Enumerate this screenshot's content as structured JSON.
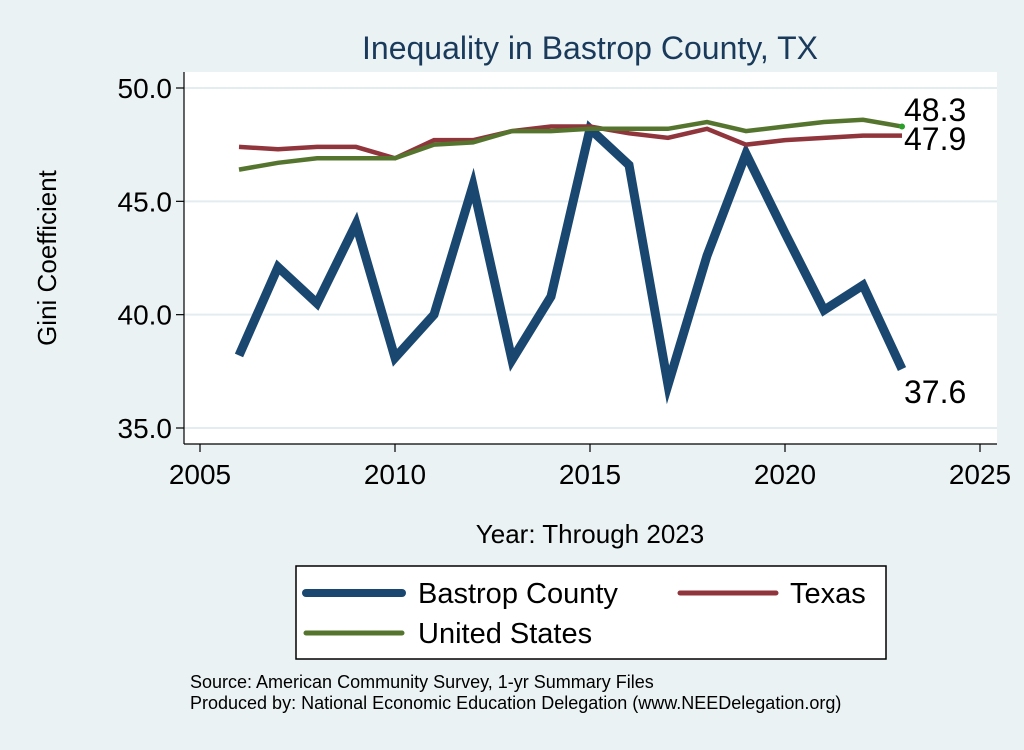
{
  "chart_data": {
    "type": "line",
    "title": "Inequality in Bastrop County, TX",
    "xlabel": "Year: Through 2023",
    "ylabel": "Gini Coefficient",
    "xlim": [
      2004,
      2025.5
    ],
    "ylim": [
      34.3,
      50.7
    ],
    "x_ticks": [
      2005,
      2010,
      2015,
      2020,
      2025
    ],
    "y_ticks": [
      35,
      40,
      45,
      50
    ],
    "y_tick_labels": [
      "35.0",
      "40.0",
      "45.0",
      "50.0"
    ],
    "grid": true,
    "legend_position": "bottom",
    "x": [
      2006,
      2007,
      2008,
      2009,
      2010,
      2011,
      2012,
      2013,
      2014,
      2015,
      2016,
      2017,
      2018,
      2019,
      2020,
      2021,
      2022,
      2023
    ],
    "series": [
      {
        "name": "Bastrop County",
        "color": "#1a476f",
        "values": [
          38.2,
          42.1,
          40.5,
          44.0,
          38.1,
          40.0,
          45.7,
          38.0,
          40.8,
          48.2,
          46.6,
          36.9,
          42.6,
          47.1,
          43.6,
          40.2,
          41.3,
          37.6
        ],
        "end_label": "37.6"
      },
      {
        "name": "Texas",
        "color": "#90353b",
        "values": [
          47.4,
          47.3,
          47.4,
          47.4,
          46.9,
          47.7,
          47.7,
          48.1,
          48.3,
          48.3,
          48.0,
          47.8,
          48.2,
          47.5,
          47.7,
          47.8,
          47.9,
          47.9
        ],
        "end_label": "47.9"
      },
      {
        "name": "United States",
        "color": "#55752f",
        "values": [
          46.4,
          46.7,
          46.9,
          46.9,
          46.9,
          47.5,
          47.6,
          48.1,
          48.1,
          48.2,
          48.2,
          48.2,
          48.5,
          48.1,
          48.3,
          48.5,
          48.6,
          48.3
        ],
        "end_label": "48.3"
      }
    ],
    "legend_order": [
      "Bastrop County",
      "Texas",
      "United States"
    ],
    "notes": [
      "Source: American Community Survey, 1-yr Summary Files",
      "Produced by: National Economic Education Delegation (www.NEEDelegation.org)"
    ]
  },
  "colors": {
    "background": "#eaf2f3",
    "plot_background": "#ffffff",
    "title": "#1a3a5c",
    "grid": "#e3ecef"
  }
}
